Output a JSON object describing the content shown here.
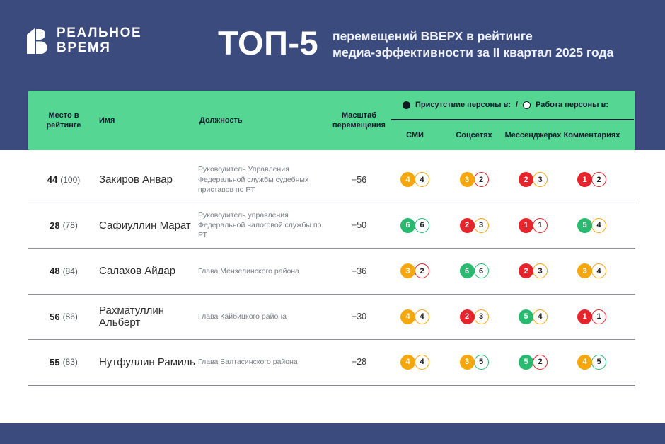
{
  "header": {
    "brand_line1": "РЕАЛЬНОЕ",
    "brand_line2": "ВРЕМЯ",
    "title": "ТОП-5",
    "subtitle_line1": "перемещений ВВЕРХ в рейтинге",
    "subtitle_line2": "медиа-эффективности за II квартал 2025 года"
  },
  "table": {
    "columns": {
      "rank": "Место в рейтинге",
      "name": "Имя",
      "position": "Должность",
      "scale": "Масштаб перемещения"
    },
    "legend": {
      "filled_icon": "filled-circle",
      "filled_label": "Присутствие персоны в:",
      "divider": "/",
      "outlined_icon": "outlined-circle",
      "outlined_label": "Работа персоны в:"
    },
    "metric_columns": [
      "СМИ",
      "Соцсетях",
      "Мессенджерах",
      "Комментариях"
    ],
    "rows": [
      {
        "rank": "44",
        "rank_prev": "(100)",
        "name": "Закиров Анвар",
        "position": "Руководитель Управления Федеральной службы судебных приставов по РТ",
        "scale": "+56",
        "metrics": [
          {
            "presence": {
              "value": "4",
              "color": "amber"
            },
            "work": {
              "value": "4",
              "color": "amber"
            }
          },
          {
            "presence": {
              "value": "3",
              "color": "amber"
            },
            "work": {
              "value": "2",
              "color": "red"
            }
          },
          {
            "presence": {
              "value": "2",
              "color": "red"
            },
            "work": {
              "value": "3",
              "color": "amber"
            }
          },
          {
            "presence": {
              "value": "1",
              "color": "red"
            },
            "work": {
              "value": "2",
              "color": "red"
            }
          }
        ]
      },
      {
        "rank": "28",
        "rank_prev": "(78)",
        "name": "Сафиуллин Марат",
        "position": "Руководитель управления Федеральной налоговой службы по РТ",
        "scale": "+50",
        "metrics": [
          {
            "presence": {
              "value": "6",
              "color": "green"
            },
            "work": {
              "value": "6",
              "color": "green"
            }
          },
          {
            "presence": {
              "value": "2",
              "color": "red"
            },
            "work": {
              "value": "3",
              "color": "amber"
            }
          },
          {
            "presence": {
              "value": "1",
              "color": "red"
            },
            "work": {
              "value": "1",
              "color": "red"
            }
          },
          {
            "presence": {
              "value": "5",
              "color": "green"
            },
            "work": {
              "value": "4",
              "color": "amber"
            }
          }
        ]
      },
      {
        "rank": "48",
        "rank_prev": "(84)",
        "name": "Салахов Айдар",
        "position": "Глава Мензелинского района",
        "scale": "+36",
        "metrics": [
          {
            "presence": {
              "value": "3",
              "color": "amber"
            },
            "work": {
              "value": "2",
              "color": "red"
            }
          },
          {
            "presence": {
              "value": "6",
              "color": "green"
            },
            "work": {
              "value": "6",
              "color": "green"
            }
          },
          {
            "presence": {
              "value": "2",
              "color": "red"
            },
            "work": {
              "value": "3",
              "color": "amber"
            }
          },
          {
            "presence": {
              "value": "3",
              "color": "amber"
            },
            "work": {
              "value": "4",
              "color": "amber"
            }
          }
        ]
      },
      {
        "rank": "56",
        "rank_prev": "(86)",
        "name": "Рахматуллин Альберт",
        "position": "Глава Кайбицкого района",
        "scale": "+30",
        "metrics": [
          {
            "presence": {
              "value": "4",
              "color": "amber"
            },
            "work": {
              "value": "4",
              "color": "amber"
            }
          },
          {
            "presence": {
              "value": "2",
              "color": "red"
            },
            "work": {
              "value": "3",
              "color": "amber"
            }
          },
          {
            "presence": {
              "value": "5",
              "color": "green"
            },
            "work": {
              "value": "4",
              "color": "amber"
            }
          },
          {
            "presence": {
              "value": "1",
              "color": "red"
            },
            "work": {
              "value": "1",
              "color": "red"
            }
          }
        ]
      },
      {
        "rank": "55",
        "rank_prev": "(83)",
        "name": "Нутфуллин Рамиль",
        "position": "Глава Балтасинского района",
        "scale": "+28",
        "metrics": [
          {
            "presence": {
              "value": "4",
              "color": "amber"
            },
            "work": {
              "value": "4",
              "color": "amber"
            }
          },
          {
            "presence": {
              "value": "3",
              "color": "amber"
            },
            "work": {
              "value": "5",
              "color": "green"
            }
          },
          {
            "presence": {
              "value": "5",
              "color": "green"
            },
            "work": {
              "value": "2",
              "color": "red"
            }
          },
          {
            "presence": {
              "value": "4",
              "color": "amber"
            },
            "work": {
              "value": "5",
              "color": "green"
            }
          }
        ]
      }
    ]
  },
  "colors": {
    "amber": "#F5A70D",
    "red": "#E6242B",
    "green": "#29B96F",
    "navy": "#3C4B7E",
    "header_green": "#55D793"
  },
  "chart_data": {
    "type": "table",
    "title": "ТОП-5 перемещений ВВЕРХ в рейтинге медиа-эффективности за II квартал 2025 года",
    "columns": [
      "Место в рейтинге",
      "Имя",
      "Должность",
      "Масштаб перемещения",
      "СМИ",
      "Соцсетях",
      "Мессенджерах",
      "Комментариях"
    ],
    "legend": [
      "Присутствие персоны в:",
      "Работа персоны в:"
    ],
    "rows": [
      [
        "44 (100)",
        "Закиров Анвар",
        "Руководитель Управления Федеральной службы судебных приставов по РТ",
        "+56",
        "4/4",
        "3/2",
        "2/3",
        "1/2"
      ],
      [
        "28 (78)",
        "Сафиуллин Марат",
        "Руководитель управления Федеральной налоговой службы по РТ",
        "+50",
        "6/6",
        "2/3",
        "1/1",
        "5/4"
      ],
      [
        "48 (84)",
        "Салахов Айдар",
        "Глава Мензелинского района",
        "+36",
        "3/2",
        "6/6",
        "2/3",
        "3/4"
      ],
      [
        "56 (86)",
        "Рахматуллин Альберт",
        "Глава Кайбицкого района",
        "+30",
        "4/4",
        "2/3",
        "5/4",
        "1/1"
      ],
      [
        "55 (83)",
        "Нутфуллин Рамиль",
        "Глава Балтасинского района",
        "+28",
        "4/4",
        "3/5",
        "5/2",
        "4/5"
      ]
    ]
  }
}
